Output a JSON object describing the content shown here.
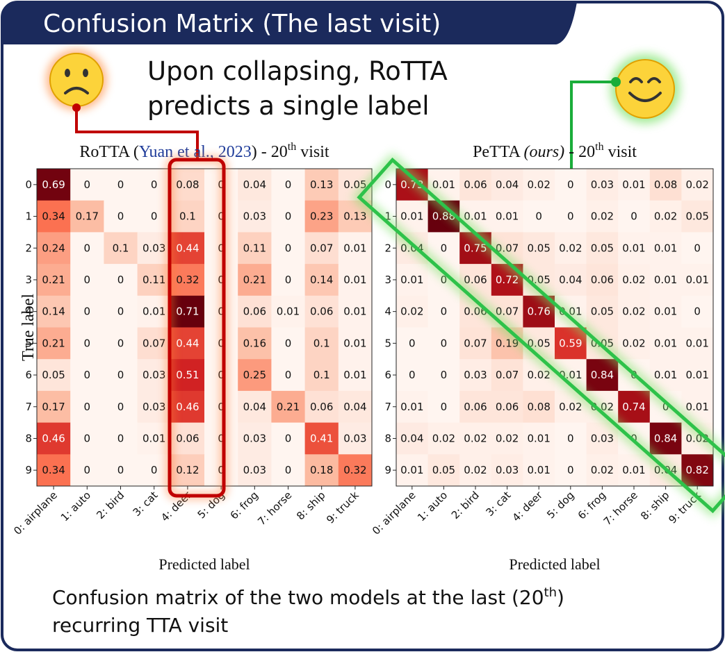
{
  "header": {
    "title": "Confusion Matrix (The last visit)"
  },
  "annotation": {
    "lines": [
      "Upon collapsing, RoTTA",
      "predicts a single label"
    ]
  },
  "caption": {
    "parts": [
      "Confusion matrix of the two models at the last (20",
      "th",
      ")",
      "recurring TTA visit"
    ]
  },
  "chart_data": [
    {
      "type": "heatmap",
      "colormap": "Reds",
      "zlim": [
        0,
        0.71
      ],
      "title_parts": [
        "RoTTA (",
        "Yuan et al., 2023",
        ") - 20",
        "th",
        " visit"
      ],
      "y_label": "True label",
      "x_label": "Predicted label",
      "rows": [
        "0",
        "1",
        "2",
        "3",
        "4",
        "5",
        "6",
        "7",
        "8",
        "9"
      ],
      "columns": [
        "0: airplane",
        "1: auto",
        "2: bird",
        "3: cat",
        "4: deer",
        "5: dog",
        "6: frog",
        "7: horse",
        "8: ship",
        "9: truck"
      ],
      "values": [
        [
          0.69,
          0,
          0,
          0,
          0.08,
          0,
          0.04,
          0,
          0.13,
          0.05
        ],
        [
          0.34,
          0.17,
          0,
          0,
          0.1,
          0,
          0.03,
          0,
          0.23,
          0.13
        ],
        [
          0.24,
          0,
          0.1,
          0.03,
          0.44,
          0,
          0.11,
          0,
          0.07,
          0.01
        ],
        [
          0.21,
          0,
          0,
          0.11,
          0.32,
          0,
          0.21,
          0,
          0.14,
          0.01
        ],
        [
          0.14,
          0,
          0,
          0.01,
          0.71,
          0,
          0.06,
          0.01,
          0.06,
          0.01
        ],
        [
          0.21,
          0,
          0,
          0.07,
          0.44,
          0,
          0.16,
          0,
          0.1,
          0.01
        ],
        [
          0.05,
          0,
          0,
          0.03,
          0.51,
          0,
          0.25,
          0,
          0.1,
          0.01
        ],
        [
          0.17,
          0,
          0,
          0.03,
          0.46,
          0,
          0.04,
          0.21,
          0.06,
          0.04
        ],
        [
          0.46,
          0,
          0,
          0.01,
          0.06,
          0,
          0.03,
          0,
          0.41,
          0.03
        ],
        [
          0.34,
          0,
          0,
          0,
          0.12,
          0,
          0.03,
          0,
          0.18,
          0.32
        ]
      ]
    },
    {
      "type": "heatmap",
      "colormap": "Reds",
      "zlim": [
        0,
        0.88
      ],
      "title_parts": [
        "PeTTA ",
        "(ours)",
        " - 20",
        "th",
        " visit"
      ],
      "x_label": "Predicted label",
      "rows": [
        "0",
        "1",
        "2",
        "3",
        "4",
        "5",
        "6",
        "7",
        "8",
        "9"
      ],
      "columns": [
        "0: airplane",
        "1: auto",
        "2: bird",
        "3: cat",
        "4: deer",
        "5: dog",
        "6: frog",
        "7: horse",
        "8: ship",
        "9: truck"
      ],
      "values": [
        [
          0.73,
          0.01,
          0.06,
          0.04,
          0.02,
          0,
          0.03,
          0.01,
          0.08,
          0.02
        ],
        [
          0.01,
          0.88,
          0.01,
          0.01,
          0,
          0,
          0.02,
          0,
          0.02,
          0.05
        ],
        [
          0.04,
          0,
          0.75,
          0.07,
          0.05,
          0.02,
          0.05,
          0.01,
          0.01,
          0
        ],
        [
          0.01,
          0,
          0.06,
          0.72,
          0.05,
          0.04,
          0.06,
          0.02,
          0.01,
          0.01
        ],
        [
          0.02,
          0,
          0.06,
          0.07,
          0.76,
          0.01,
          0.05,
          0.02,
          0.01,
          0
        ],
        [
          0,
          0,
          0.07,
          0.19,
          0.05,
          0.59,
          0.05,
          0.02,
          0.01,
          0.01
        ],
        [
          0,
          0,
          0.03,
          0.07,
          0.02,
          0.01,
          0.84,
          0,
          0.01,
          0.01
        ],
        [
          0.01,
          0,
          0.06,
          0.06,
          0.08,
          0.02,
          0.02,
          0.74,
          0,
          0.01
        ],
        [
          0.04,
          0.02,
          0.02,
          0.02,
          0.01,
          0,
          0.03,
          0,
          0.84,
          0.02
        ],
        [
          0.01,
          0.05,
          0.02,
          0.03,
          0.01,
          0,
          0.02,
          0.01,
          0.04,
          0.82
        ]
      ]
    }
  ]
}
